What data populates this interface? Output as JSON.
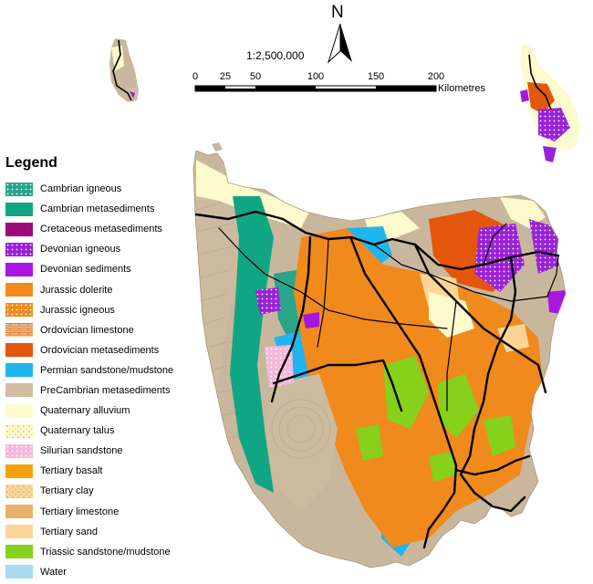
{
  "legend": {
    "title": "Legend",
    "items": [
      {
        "label": "Cambrian igneous",
        "color": "#2aa58a",
        "pattern": "dots"
      },
      {
        "label": "Cambrian metasediments",
        "color": "#11a683",
        "pattern": "solid"
      },
      {
        "label": "Cretaceous metasediments",
        "color": "#9c0a7e",
        "pattern": "solid"
      },
      {
        "label": "Devonian igneous",
        "color": "#9a22d6",
        "pattern": "dots"
      },
      {
        "label": "Devonian sediments",
        "color": "#a816e0",
        "pattern": "solid"
      },
      {
        "label": "Jurassic dolerite",
        "color": "#f38a1c",
        "pattern": "solid"
      },
      {
        "label": "Jurassic igneous",
        "color": "#f08a1e",
        "pattern": "dots"
      },
      {
        "label": "Ordovician limestone",
        "color": "#f6c89a",
        "pattern": "brick"
      },
      {
        "label": "Ordovician metasediments",
        "color": "#e4560c",
        "pattern": "solid"
      },
      {
        "label": "Permian sandstone/mudstone",
        "color": "#1fb6ef",
        "pattern": "solid"
      },
      {
        "label": "PreCambrian metasediments",
        "color": "#d2bea3",
        "pattern": "solid"
      },
      {
        "label": "Quaternary alluvium",
        "color": "#fdfbcd",
        "pattern": "solid"
      },
      {
        "label": "Quaternary talus",
        "color": "#fdfbcd",
        "pattern": "sparse"
      },
      {
        "label": "Silurian sandstone",
        "color": "#f3b8da",
        "pattern": "dots"
      },
      {
        "label": "Tertiary basalt",
        "color": "#f3a20d",
        "pattern": "solid"
      },
      {
        "label": "Tertiary clay",
        "color": "#fbd89a",
        "pattern": "sparse"
      },
      {
        "label": "Tertiary limestone",
        "color": "#e8b16b",
        "pattern": "solid"
      },
      {
        "label": "Tertiary sand",
        "color": "#fcd596",
        "pattern": "solid"
      },
      {
        "label": "Triassic sandstone/mudstone",
        "color": "#86d11b",
        "pattern": "solid"
      },
      {
        "label": "Water",
        "color": "#a8dbef",
        "pattern": "solid"
      }
    ]
  },
  "scale_bar": {
    "ratio": "1:2,500,000",
    "ticks": [
      {
        "label": "0",
        "km": 0
      },
      {
        "label": "25",
        "km": 25
      },
      {
        "label": "50",
        "km": 50
      },
      {
        "label": "100",
        "km": 100
      },
      {
        "label": "150",
        "km": 150
      },
      {
        "label": "200",
        "km": 200
      }
    ],
    "units": "Kilometres"
  },
  "north_arrow": {
    "label": "N",
    "icon": "north-arrow-icon"
  },
  "colors": {
    "road": "#000000",
    "terrain": "#c9b79d",
    "dolerite": "#f08a1c",
    "green": "#86d11b",
    "cambrian": "#11a683",
    "permian": "#1fb6ef",
    "devonian": "#a816e0",
    "alluvium": "#fdfbcd",
    "ordovician": "#e4560c"
  }
}
